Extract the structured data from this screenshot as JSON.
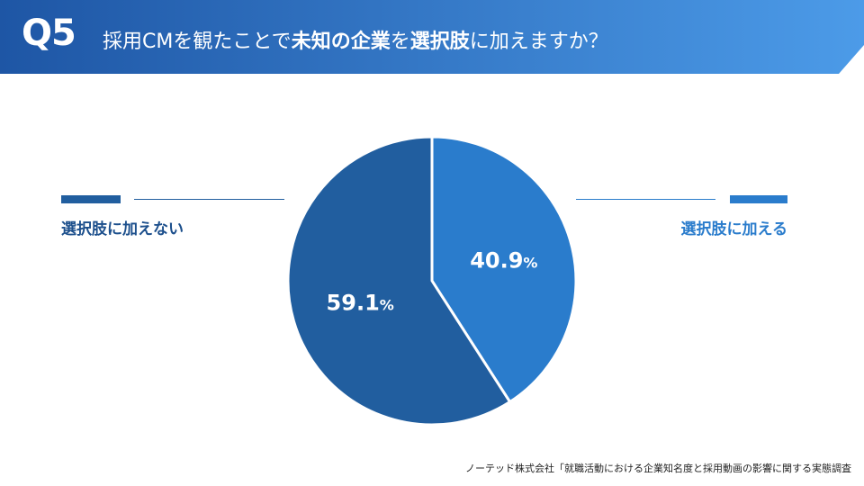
{
  "header": {
    "question": "Q5",
    "title_parts": [
      {
        "text": "採用CMを観たことで",
        "bold": false
      },
      {
        "text": "未知の企業",
        "bold": true
      },
      {
        "text": "を",
        "bold": false
      },
      {
        "text": "選択肢",
        "bold": true
      },
      {
        "text": "に加えますか？",
        "bold": false
      }
    ],
    "gradient_start": "#1e56a5",
    "gradient_end": "#4c9be8"
  },
  "chart_data": {
    "type": "pie",
    "start_angle_deg": 0,
    "direction": "clockwise",
    "slices": [
      {
        "label": "選択肢に加える",
        "value": 40.9,
        "value_text": "40.9",
        "unit": "%",
        "color": "#2a7ccc"
      },
      {
        "label": "選択肢に加えない",
        "value": 59.1,
        "value_text": "59.1",
        "unit": "%",
        "color": "#215e9f"
      }
    ]
  },
  "legend": {
    "left": {
      "label": "選択肢に加えない",
      "color": "#215e9f",
      "text_color": "#1c4f8c"
    },
    "right": {
      "label": "選択肢に加える",
      "color": "#2a7ccc",
      "text_color": "#2a7ccc"
    }
  },
  "footer": {
    "source": "ノーテッド株式会社「就職活動における企業知名度と採用動画の影響に関する実態調査"
  }
}
